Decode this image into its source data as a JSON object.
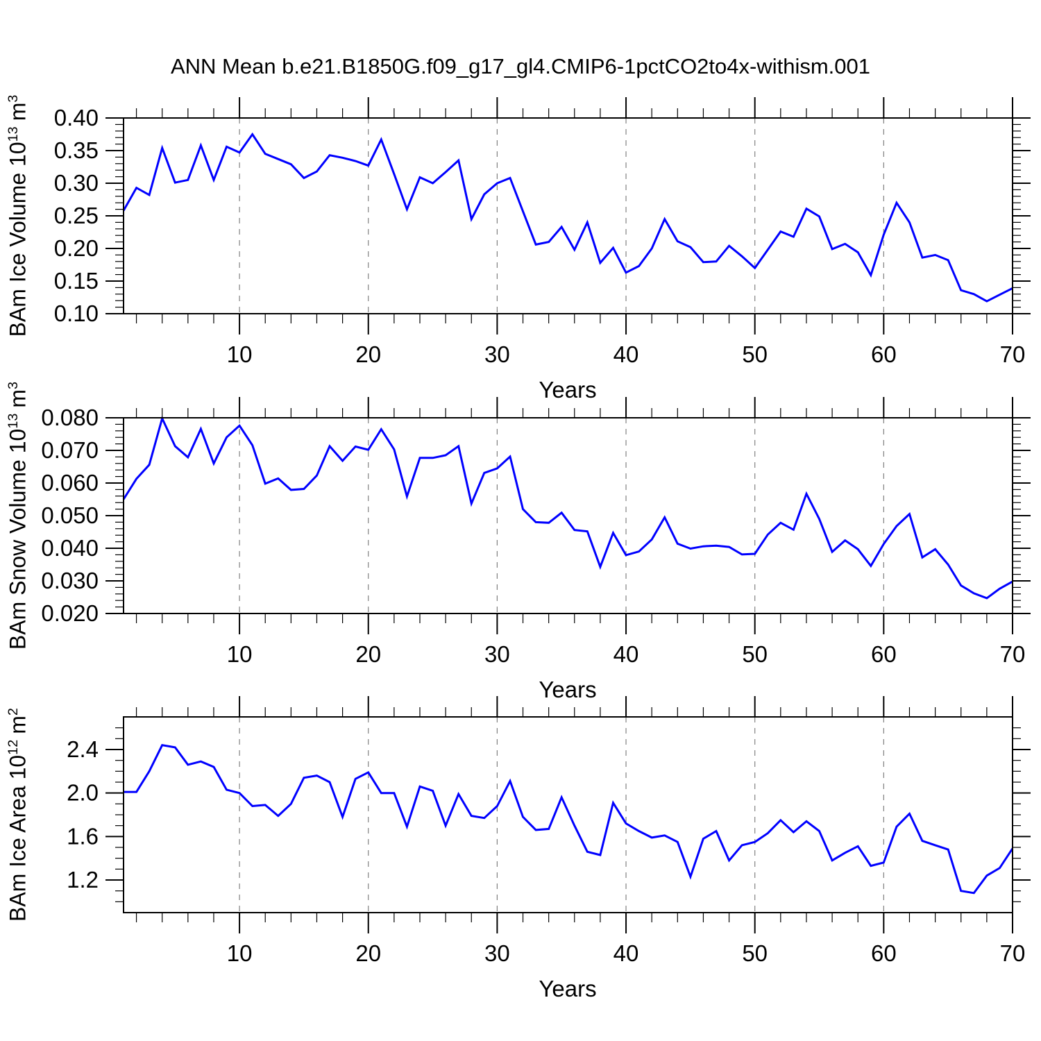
{
  "title": "ANN Mean b.e21.B1850G.f09_g17_gl4.CMIP6-1pctCO2to4x-withism.001",
  "colors": {
    "line": "#0000ff",
    "grid": "#808080",
    "axis": "#000000",
    "background": "#ffffff",
    "text": "#000000"
  },
  "xaxis": {
    "label": "Years",
    "min": 1,
    "max": 70,
    "major_ticks": [
      10,
      20,
      30,
      40,
      50,
      60,
      70
    ],
    "minor_step": 2,
    "gridlines": "dashed"
  },
  "chart_data": [
    {
      "type": "line",
      "series_name": "BAm Ice Volume",
      "ylabel": {
        "prefix": "BAm Ice Volume 10",
        "exponent": "13",
        "unit": "m",
        "unit_exponent": "3"
      },
      "ylim": [
        0.1,
        0.4
      ],
      "ytick_values": [
        0.1,
        0.15,
        0.2,
        0.25,
        0.3,
        0.35,
        0.4
      ],
      "ytick_labels": [
        "0.10",
        "0.15",
        "0.20",
        "0.25",
        "0.30",
        "0.35",
        "0.40"
      ],
      "yminor_step": 0.01,
      "x_start": 1,
      "values": [
        0.258,
        0.293,
        0.282,
        0.354,
        0.301,
        0.305,
        0.358,
        0.305,
        0.356,
        0.347,
        0.375,
        0.345,
        0.337,
        0.329,
        0.308,
        0.318,
        0.343,
        0.339,
        0.334,
        0.327,
        0.367,
        0.314,
        0.26,
        0.309,
        0.3,
        0.317,
        0.335,
        0.245,
        0.283,
        0.3,
        0.308,
        0.257,
        0.206,
        0.21,
        0.233,
        0.198,
        0.24,
        0.178,
        0.201,
        0.163,
        0.173,
        0.2,
        0.245,
        0.211,
        0.202,
        0.179,
        0.18,
        0.204,
        0.188,
        0.17,
        0.198,
        0.226,
        0.218,
        0.261,
        0.249,
        0.199,
        0.207,
        0.194,
        0.159,
        0.221,
        0.27,
        0.24,
        0.186,
        0.19,
        0.182,
        0.136,
        0.13,
        0.119,
        0.129,
        0.139
      ]
    },
    {
      "type": "line",
      "series_name": "BAm Snow Volume",
      "ylabel": {
        "prefix": "BAm Snow Volume 10",
        "exponent": "13",
        "unit": "m",
        "unit_exponent": "3"
      },
      "ylim": [
        0.02,
        0.08
      ],
      "ytick_values": [
        0.02,
        0.03,
        0.04,
        0.05,
        0.06,
        0.07,
        0.08
      ],
      "ytick_labels": [
        "0.020",
        "0.030",
        "0.040",
        "0.050",
        "0.060",
        "0.070",
        "0.080"
      ],
      "yminor_step": 0.002,
      "x_start": 1,
      "values": [
        0.055,
        0.0613,
        0.0656,
        0.0798,
        0.0713,
        0.0679,
        0.0766,
        0.066,
        0.074,
        0.0776,
        0.0716,
        0.0598,
        0.0614,
        0.0579,
        0.0582,
        0.0623,
        0.0713,
        0.0668,
        0.0712,
        0.0702,
        0.0765,
        0.0703,
        0.0559,
        0.0677,
        0.0677,
        0.0685,
        0.0713,
        0.0537,
        0.0631,
        0.0645,
        0.0681,
        0.052,
        0.048,
        0.0478,
        0.0509,
        0.0456,
        0.0452,
        0.0343,
        0.0447,
        0.0379,
        0.039,
        0.0427,
        0.0495,
        0.0414,
        0.0399,
        0.0406,
        0.0408,
        0.0404,
        0.0381,
        0.0383,
        0.0442,
        0.0478,
        0.0457,
        0.0567,
        0.049,
        0.0389,
        0.0424,
        0.0397,
        0.0346,
        0.0413,
        0.0468,
        0.0505,
        0.0372,
        0.0397,
        0.035,
        0.0286,
        0.0262,
        0.0247,
        0.0276,
        0.0298
      ]
    },
    {
      "type": "line",
      "series_name": "BAm Ice Area",
      "ylabel": {
        "prefix": "BAm Ice Area 10",
        "exponent": "12",
        "unit": "m",
        "unit_exponent": "2"
      },
      "ylim": [
        0.9,
        2.7
      ],
      "ytick_values": [
        1.2,
        1.6,
        2.0,
        2.4
      ],
      "ytick_labels": [
        "1.2",
        "1.6",
        "2.0",
        "2.4"
      ],
      "yminor_step": 0.1,
      "x_start": 1,
      "values": [
        2.01,
        2.01,
        2.2,
        2.44,
        2.42,
        2.26,
        2.29,
        2.24,
        2.03,
        2.0,
        1.88,
        1.89,
        1.79,
        1.9,
        2.14,
        2.16,
        2.1,
        1.78,
        2.13,
        2.19,
        2.0,
        2.0,
        1.69,
        2.06,
        2.02,
        1.7,
        1.99,
        1.79,
        1.77,
        1.88,
        2.11,
        1.78,
        1.66,
        1.67,
        1.96,
        1.7,
        1.46,
        1.43,
        1.91,
        1.72,
        1.65,
        1.59,
        1.61,
        1.55,
        1.23,
        1.58,
        1.65,
        1.38,
        1.52,
        1.55,
        1.63,
        1.75,
        1.64,
        1.74,
        1.65,
        1.38,
        1.45,
        1.51,
        1.33,
        1.36,
        1.69,
        1.81,
        1.56,
        1.52,
        1.48,
        1.1,
        1.08,
        1.24,
        1.31,
        1.49
      ]
    }
  ]
}
